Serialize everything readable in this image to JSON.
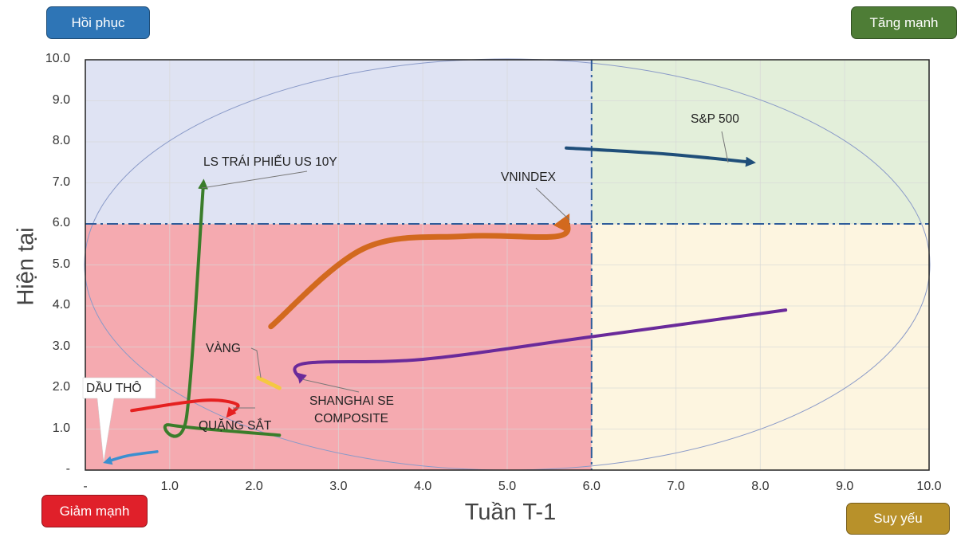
{
  "badges": {
    "recovery": {
      "label": "Hồi phục",
      "color": "#2e75b6"
    },
    "strong_up": {
      "label": "Tăng mạnh",
      "color": "#4e7d36"
    },
    "strong_down": {
      "label": "Giảm mạnh",
      "color": "#e0202a"
    },
    "weak": {
      "label": "Suy yếu",
      "color": "#b8912a"
    }
  },
  "axes": {
    "x_title": "Tuần T-1",
    "y_title": "Hiện tại",
    "x_ticks": [
      "-",
      "1.0",
      "2.0",
      "3.0",
      "4.0",
      "5.0",
      "6.0",
      "7.0",
      "8.0",
      "9.0",
      "10.0"
    ],
    "y_ticks": [
      "10.0",
      "9.0",
      "8.0",
      "7.0",
      "6.0",
      "5.0",
      "4.0",
      "3.0",
      "2.0",
      "1.0",
      "-"
    ]
  },
  "chart_data": {
    "type": "line",
    "title": "",
    "xlabel": "Tuần T-1",
    "ylabel": "Hiện tại",
    "xlim": [
      0,
      10
    ],
    "ylim": [
      0,
      10
    ],
    "grid": true,
    "quadrant_thresholds": {
      "x": 6.0,
      "y": 6.0
    },
    "quadrants": [
      {
        "name": "Hồi phục",
        "x_range": [
          0,
          6
        ],
        "y_range": [
          6,
          10
        ],
        "fill": "#dfe3f3"
      },
      {
        "name": "Tăng mạnh",
        "x_range": [
          6,
          10
        ],
        "y_range": [
          6,
          10
        ],
        "fill": "#e3efda"
      },
      {
        "name": "Giảm mạnh",
        "x_range": [
          0,
          6
        ],
        "y_range": [
          0,
          6
        ],
        "fill": "#f5aab0"
      },
      {
        "name": "Suy yếu",
        "x_range": [
          6,
          10
        ],
        "y_range": [
          0,
          6
        ],
        "fill": "#fdf5e0"
      }
    ],
    "series": [
      {
        "name": "S&P 500",
        "color": "#1f4e79",
        "points": [
          [
            5.7,
            7.85
          ],
          [
            6.9,
            7.7
          ],
          [
            7.9,
            7.5
          ]
        ]
      },
      {
        "name": "VNINDEX",
        "color": "#d2691e",
        "points": [
          [
            2.2,
            3.5
          ],
          [
            3.3,
            5.4
          ],
          [
            4.5,
            5.7
          ],
          [
            5.6,
            5.7
          ],
          [
            5.7,
            6.1
          ]
        ]
      },
      {
        "name": "LS TRÁI PHIẾU US 10Y",
        "color": "#3a7d2a",
        "points": [
          [
            2.3,
            0.85
          ],
          [
            1.0,
            1.1
          ],
          [
            1.2,
            1.3
          ],
          [
            1.4,
            7.0
          ]
        ]
      },
      {
        "name": "SHANGHAI SE COMPOSITE",
        "color": "#6a2a9a",
        "points": [
          [
            8.3,
            3.9
          ],
          [
            6.0,
            3.25
          ],
          [
            4.0,
            2.7
          ],
          [
            2.6,
            2.6
          ],
          [
            2.55,
            2.2
          ]
        ]
      },
      {
        "name": "VÀNG",
        "color": "#f5c842",
        "points": [
          [
            2.3,
            2.0
          ],
          [
            2.05,
            2.25
          ]
        ]
      },
      {
        "name": "QUẶNG SẮT",
        "color": "#e52020",
        "points": [
          [
            0.55,
            1.45
          ],
          [
            1.4,
            1.7
          ],
          [
            1.8,
            1.6
          ],
          [
            1.7,
            1.35
          ]
        ]
      },
      {
        "name": "DẦU THÔ",
        "color": "#3b8fd0",
        "points": [
          [
            0.85,
            0.45
          ],
          [
            0.5,
            0.35
          ],
          [
            0.25,
            0.2
          ]
        ]
      }
    ],
    "annotations": [
      "LS TRÁI PHIẾU US 10Y",
      "VNINDEX",
      "S&P 500",
      "VÀNG",
      "SHANGHAI SE COMPOSITE",
      "QUẶNG SẮT",
      "DẦU THÔ"
    ]
  },
  "labels": {
    "sp500": "S&P 500",
    "vnindex": "VNINDEX",
    "bond": "LS TRÁI PHIẾU US 10Y",
    "gold": "VÀNG",
    "shanghai1": "SHANGHAI SE",
    "shanghai2": "COMPOSITE",
    "iron": "QUẶNG SẮT",
    "oil": "DẦU THÔ"
  }
}
